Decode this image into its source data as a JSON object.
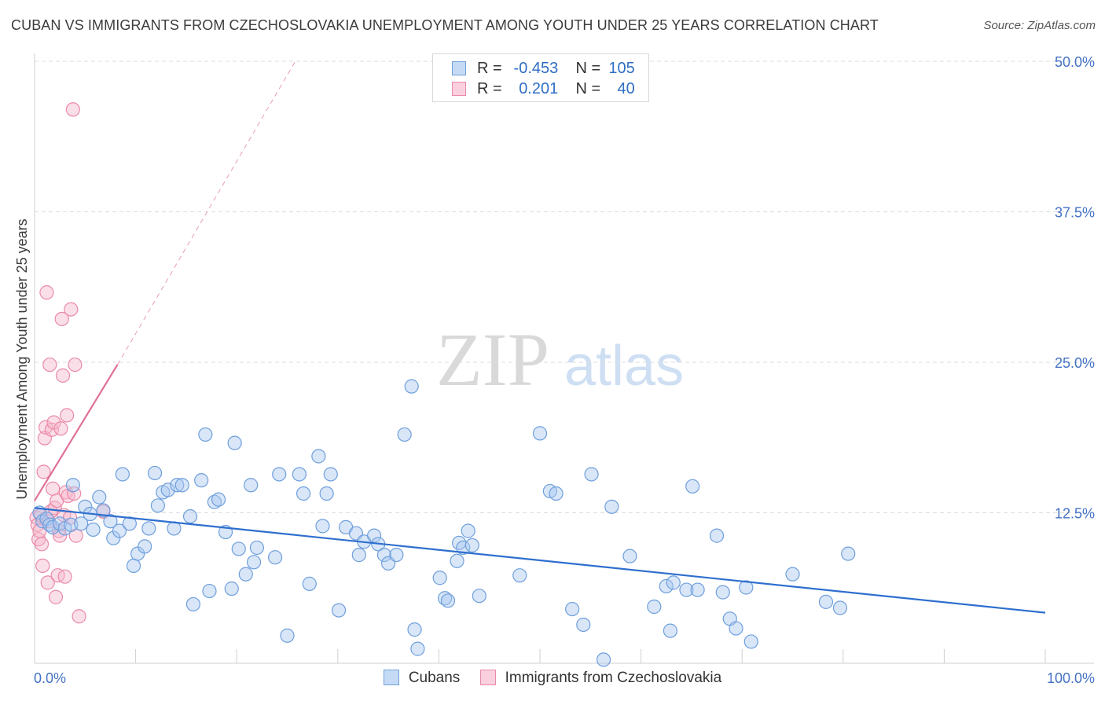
{
  "title": "CUBAN VS IMMIGRANTS FROM CZECHOSLOVAKIA UNEMPLOYMENT AMONG YOUTH UNDER 25 YEARS CORRELATION CHART",
  "source": "Source: ZipAtlas.com",
  "watermark": {
    "part1": "ZIP",
    "part2": "atlas"
  },
  "colors": {
    "cubans_fill": "#a9c8ef",
    "cubans_stroke": "#6f9fdc",
    "cubans_line": "#2e6fce",
    "czech_fill": "#f7b9cc",
    "czech_stroke": "#ea8aa8",
    "czech_line": "#e0709a",
    "tick_label": "#4472c4",
    "grid": "#dddddd"
  },
  "legend": {
    "rows": [
      {
        "r_label": "R =",
        "r_value": "-0.453",
        "n_label": "N =",
        "n_value": "105"
      },
      {
        "r_label": "R =",
        "r_value": "0.201",
        "n_label": "N =",
        "n_value": "40"
      }
    ]
  },
  "chart_data": {
    "type": "scatter",
    "xlabel": "",
    "ylabel": "Unemployment Among Youth under 25 years",
    "xlim": [
      0,
      100
    ],
    "ylim": [
      0,
      50
    ],
    "x_tick_labels": [
      "0.0%",
      "100.0%"
    ],
    "y_ticks": [
      12.5,
      25.0,
      37.5,
      50.0
    ],
    "y_tick_labels": [
      "12.5%",
      "25.0%",
      "37.5%",
      "50.0%"
    ],
    "grid": "horizontal dashed",
    "legend_position": "top-center",
    "series": [
      {
        "name": "Cubans",
        "r": -0.453,
        "n": 105,
        "trend": {
          "x": [
            0,
            100
          ],
          "y": [
            12.9,
            4.2
          ]
        },
        "points": [
          [
            0.5,
            12.5
          ],
          [
            0.8,
            11.8
          ],
          [
            1.2,
            12.0
          ],
          [
            1.5,
            11.5
          ],
          [
            1.8,
            11.3
          ],
          [
            2.5,
            11.6
          ],
          [
            3.0,
            11.2
          ],
          [
            3.6,
            11.5
          ],
          [
            3.8,
            14.8
          ],
          [
            4.6,
            11.6
          ],
          [
            5.0,
            13.0
          ],
          [
            5.5,
            12.4
          ],
          [
            5.8,
            11.1
          ],
          [
            6.4,
            13.8
          ],
          [
            6.8,
            12.7
          ],
          [
            7.5,
            11.8
          ],
          [
            7.8,
            10.4
          ],
          [
            8.4,
            11.0
          ],
          [
            8.7,
            15.7
          ],
          [
            9.4,
            11.6
          ],
          [
            9.8,
            8.1
          ],
          [
            10.2,
            9.1
          ],
          [
            10.9,
            9.7
          ],
          [
            11.3,
            11.2
          ],
          [
            11.9,
            15.8
          ],
          [
            12.2,
            13.1
          ],
          [
            12.7,
            14.2
          ],
          [
            13.2,
            14.4
          ],
          [
            13.8,
            11.2
          ],
          [
            14.1,
            14.8
          ],
          [
            14.6,
            14.8
          ],
          [
            15.4,
            12.2
          ],
          [
            15.7,
            4.9
          ],
          [
            16.5,
            15.2
          ],
          [
            16.9,
            19.0
          ],
          [
            17.3,
            6.0
          ],
          [
            17.8,
            13.4
          ],
          [
            18.2,
            13.6
          ],
          [
            18.9,
            10.9
          ],
          [
            19.5,
            6.2
          ],
          [
            19.8,
            18.3
          ],
          [
            20.2,
            9.5
          ],
          [
            20.9,
            7.4
          ],
          [
            21.4,
            14.8
          ],
          [
            21.7,
            8.4
          ],
          [
            22.0,
            9.6
          ],
          [
            23.8,
            8.8
          ],
          [
            24.2,
            15.7
          ],
          [
            25.0,
            2.3
          ],
          [
            26.2,
            15.7
          ],
          [
            26.6,
            14.1
          ],
          [
            27.2,
            6.6
          ],
          [
            28.1,
            17.2
          ],
          [
            28.5,
            11.4
          ],
          [
            28.9,
            14.1
          ],
          [
            29.3,
            15.7
          ],
          [
            30.1,
            4.4
          ],
          [
            30.8,
            11.3
          ],
          [
            31.8,
            10.8
          ],
          [
            32.1,
            9.0
          ],
          [
            32.6,
            10.1
          ],
          [
            33.6,
            10.6
          ],
          [
            34.0,
            9.9
          ],
          [
            34.6,
            9.0
          ],
          [
            35.0,
            8.3
          ],
          [
            35.8,
            9.0
          ],
          [
            36.6,
            19.0
          ],
          [
            37.3,
            23.0
          ],
          [
            37.6,
            2.8
          ],
          [
            37.9,
            1.2
          ],
          [
            40.1,
            7.1
          ],
          [
            40.6,
            5.4
          ],
          [
            40.9,
            5.2
          ],
          [
            41.8,
            8.5
          ],
          [
            42.0,
            10.0
          ],
          [
            42.4,
            9.6
          ],
          [
            42.9,
            11.0
          ],
          [
            43.3,
            9.8
          ],
          [
            44.0,
            5.6
          ],
          [
            48.0,
            7.3
          ],
          [
            50.0,
            19.1
          ],
          [
            51.0,
            14.3
          ],
          [
            51.6,
            14.1
          ],
          [
            53.2,
            4.5
          ],
          [
            54.3,
            3.2
          ],
          [
            55.1,
            15.7
          ],
          [
            56.3,
            0.3
          ],
          [
            57.1,
            13.0
          ],
          [
            58.9,
            8.9
          ],
          [
            61.3,
            4.7
          ],
          [
            62.5,
            6.4
          ],
          [
            62.9,
            2.7
          ],
          [
            63.2,
            6.7
          ],
          [
            64.5,
            6.1
          ],
          [
            65.1,
            14.7
          ],
          [
            65.6,
            6.1
          ],
          [
            67.5,
            10.6
          ],
          [
            68.1,
            5.9
          ],
          [
            68.8,
            3.7
          ],
          [
            69.4,
            2.9
          ],
          [
            70.4,
            6.3
          ],
          [
            70.9,
            1.8
          ],
          [
            75.0,
            7.4
          ],
          [
            78.3,
            5.1
          ],
          [
            79.7,
            4.6
          ],
          [
            80.5,
            9.1
          ]
        ]
      },
      {
        "name": "Immigrants from Czechoslovakia",
        "r": 0.201,
        "n": 40,
        "trend": {
          "x": [
            0,
            8.2
          ],
          "y": [
            13.5,
            24.8
          ]
        },
        "trend_extended": {
          "x": [
            8.2,
            25.8
          ],
          "y": [
            24.8,
            50.0
          ]
        },
        "points": [
          [
            0.2,
            12.1
          ],
          [
            0.3,
            11.5
          ],
          [
            0.4,
            10.3
          ],
          [
            0.5,
            11.0
          ],
          [
            0.6,
            12.3
          ],
          [
            0.7,
            9.9
          ],
          [
            0.8,
            8.1
          ],
          [
            0.9,
            15.9
          ],
          [
            1.0,
            18.7
          ],
          [
            1.1,
            19.6
          ],
          [
            1.2,
            30.8
          ],
          [
            1.3,
            6.7
          ],
          [
            1.4,
            11.8
          ],
          [
            1.5,
            24.8
          ],
          [
            1.6,
            12.6
          ],
          [
            1.7,
            19.4
          ],
          [
            1.8,
            14.5
          ],
          [
            1.9,
            20.0
          ],
          [
            2.0,
            12.9
          ],
          [
            2.1,
            5.5
          ],
          [
            2.2,
            13.5
          ],
          [
            2.3,
            7.3
          ],
          [
            2.4,
            11.0
          ],
          [
            2.5,
            10.6
          ],
          [
            2.6,
            19.5
          ],
          [
            2.7,
            28.6
          ],
          [
            2.8,
            23.9
          ],
          [
            2.9,
            12.3
          ],
          [
            3.0,
            7.2
          ],
          [
            3.1,
            14.2
          ],
          [
            3.2,
            20.6
          ],
          [
            3.3,
            13.9
          ],
          [
            3.5,
            12.1
          ],
          [
            3.6,
            29.4
          ],
          [
            3.8,
            46.0
          ],
          [
            3.9,
            14.1
          ],
          [
            4.0,
            24.8
          ],
          [
            4.1,
            10.6
          ],
          [
            4.4,
            3.9
          ],
          [
            6.8,
            12.6
          ]
        ]
      }
    ]
  }
}
